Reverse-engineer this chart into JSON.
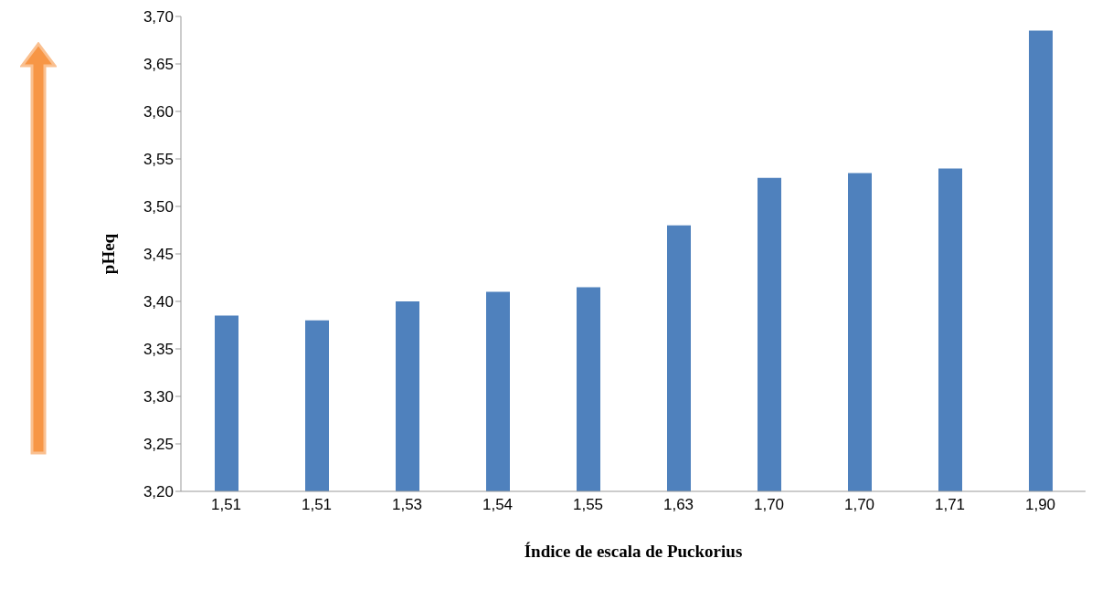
{
  "chart_data": {
    "type": "bar",
    "xlabel": "Índice de escala de Puckorius",
    "ylabel": "pHeq",
    "categories": [
      "1,51",
      "1,51",
      "1,53",
      "1,54",
      "1,55",
      "1,63",
      "1,70",
      "1,70",
      "1,71",
      "1,90"
    ],
    "values": [
      3.385,
      3.38,
      3.4,
      3.41,
      3.415,
      3.48,
      3.53,
      3.535,
      3.54,
      3.685
    ],
    "color": "#4f81bd",
    "ylim": [
      3.2,
      3.7
    ],
    "yticks": [
      {
        "value": 3.2,
        "label": "3,20"
      },
      {
        "value": 3.25,
        "label": "3,25"
      },
      {
        "value": 3.3,
        "label": "3,30"
      },
      {
        "value": 3.35,
        "label": "3,35"
      },
      {
        "value": 3.4,
        "label": "3,40"
      },
      {
        "value": 3.45,
        "label": "3,45"
      },
      {
        "value": 3.5,
        "label": "3,50"
      },
      {
        "value": 3.55,
        "label": "3,55"
      },
      {
        "value": 3.6,
        "label": "3,60"
      },
      {
        "value": 3.65,
        "label": "3,65"
      },
      {
        "value": 3.7,
        "label": "3,70"
      }
    ],
    "grid": false,
    "legend": false
  }
}
